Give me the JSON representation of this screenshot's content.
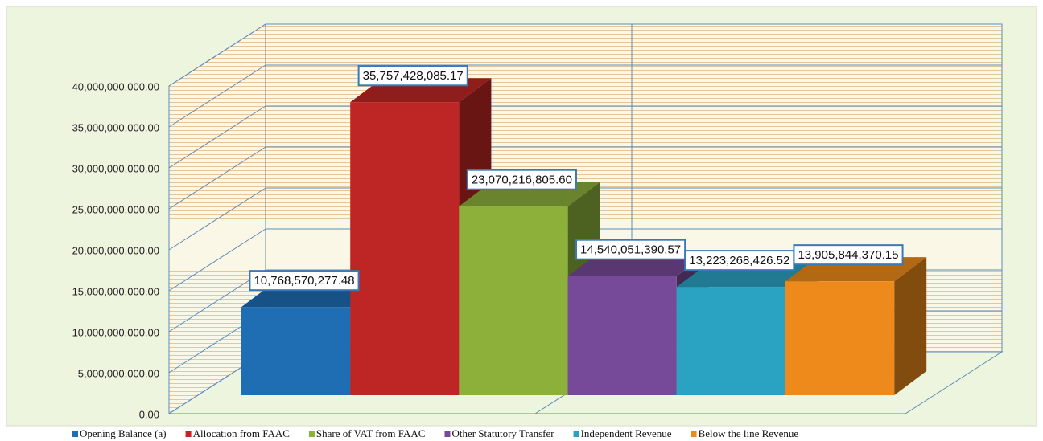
{
  "chart_data": {
    "type": "bar3d",
    "series": [
      {
        "name": "Opening Balance (a)",
        "color": "#1f6db3",
        "values": [
          10768570277.48
        ],
        "value_labels": [
          "10,768,570,277.48"
        ]
      },
      {
        "name": "Allocation from FAAC",
        "color": "#bd2625",
        "values": [
          35757428085.17
        ],
        "value_labels": [
          "35,757,428,085.17"
        ]
      },
      {
        "name": "Share of VAT from FAAC",
        "color": "#8cb03a",
        "values": [
          23070216805.6
        ],
        "value_labels": [
          "23,070,216,805.60"
        ]
      },
      {
        "name": "Other Statutory Transfer",
        "color": "#764a98",
        "values": [
          14540051390.57
        ],
        "value_labels": [
          "14,540,051,390.57"
        ]
      },
      {
        "name": "Independent Revenue",
        "color": "#2aa3c2",
        "values": [
          13223268426.52
        ],
        "value_labels": [
          "13,223,268,426.52"
        ]
      },
      {
        "name": "Below the line Revenue",
        "color": "#ee8a1b",
        "values": [
          13905844370.15
        ],
        "value_labels": [
          "13,905,844,370.15"
        ]
      }
    ],
    "ylim": [
      0,
      40000000000
    ],
    "yticks": [
      {
        "value": 0,
        "label": "0.00"
      },
      {
        "value": 5000000000,
        "label": "5,000,000,000.00"
      },
      {
        "value": 10000000000,
        "label": "10,000,000,000.00"
      },
      {
        "value": 15000000000,
        "label": "15,000,000,000.00"
      },
      {
        "value": 20000000000,
        "label": "20,000,000,000.00"
      },
      {
        "value": 25000000000,
        "label": "25,000,000,000.00"
      },
      {
        "value": 30000000000,
        "label": "30,000,000,000.00"
      },
      {
        "value": 35000000000,
        "label": "35,000,000,000.00"
      },
      {
        "value": 40000000000,
        "label": "40,000,000,000.00"
      }
    ],
    "grid": true,
    "legend": "bottom"
  }
}
